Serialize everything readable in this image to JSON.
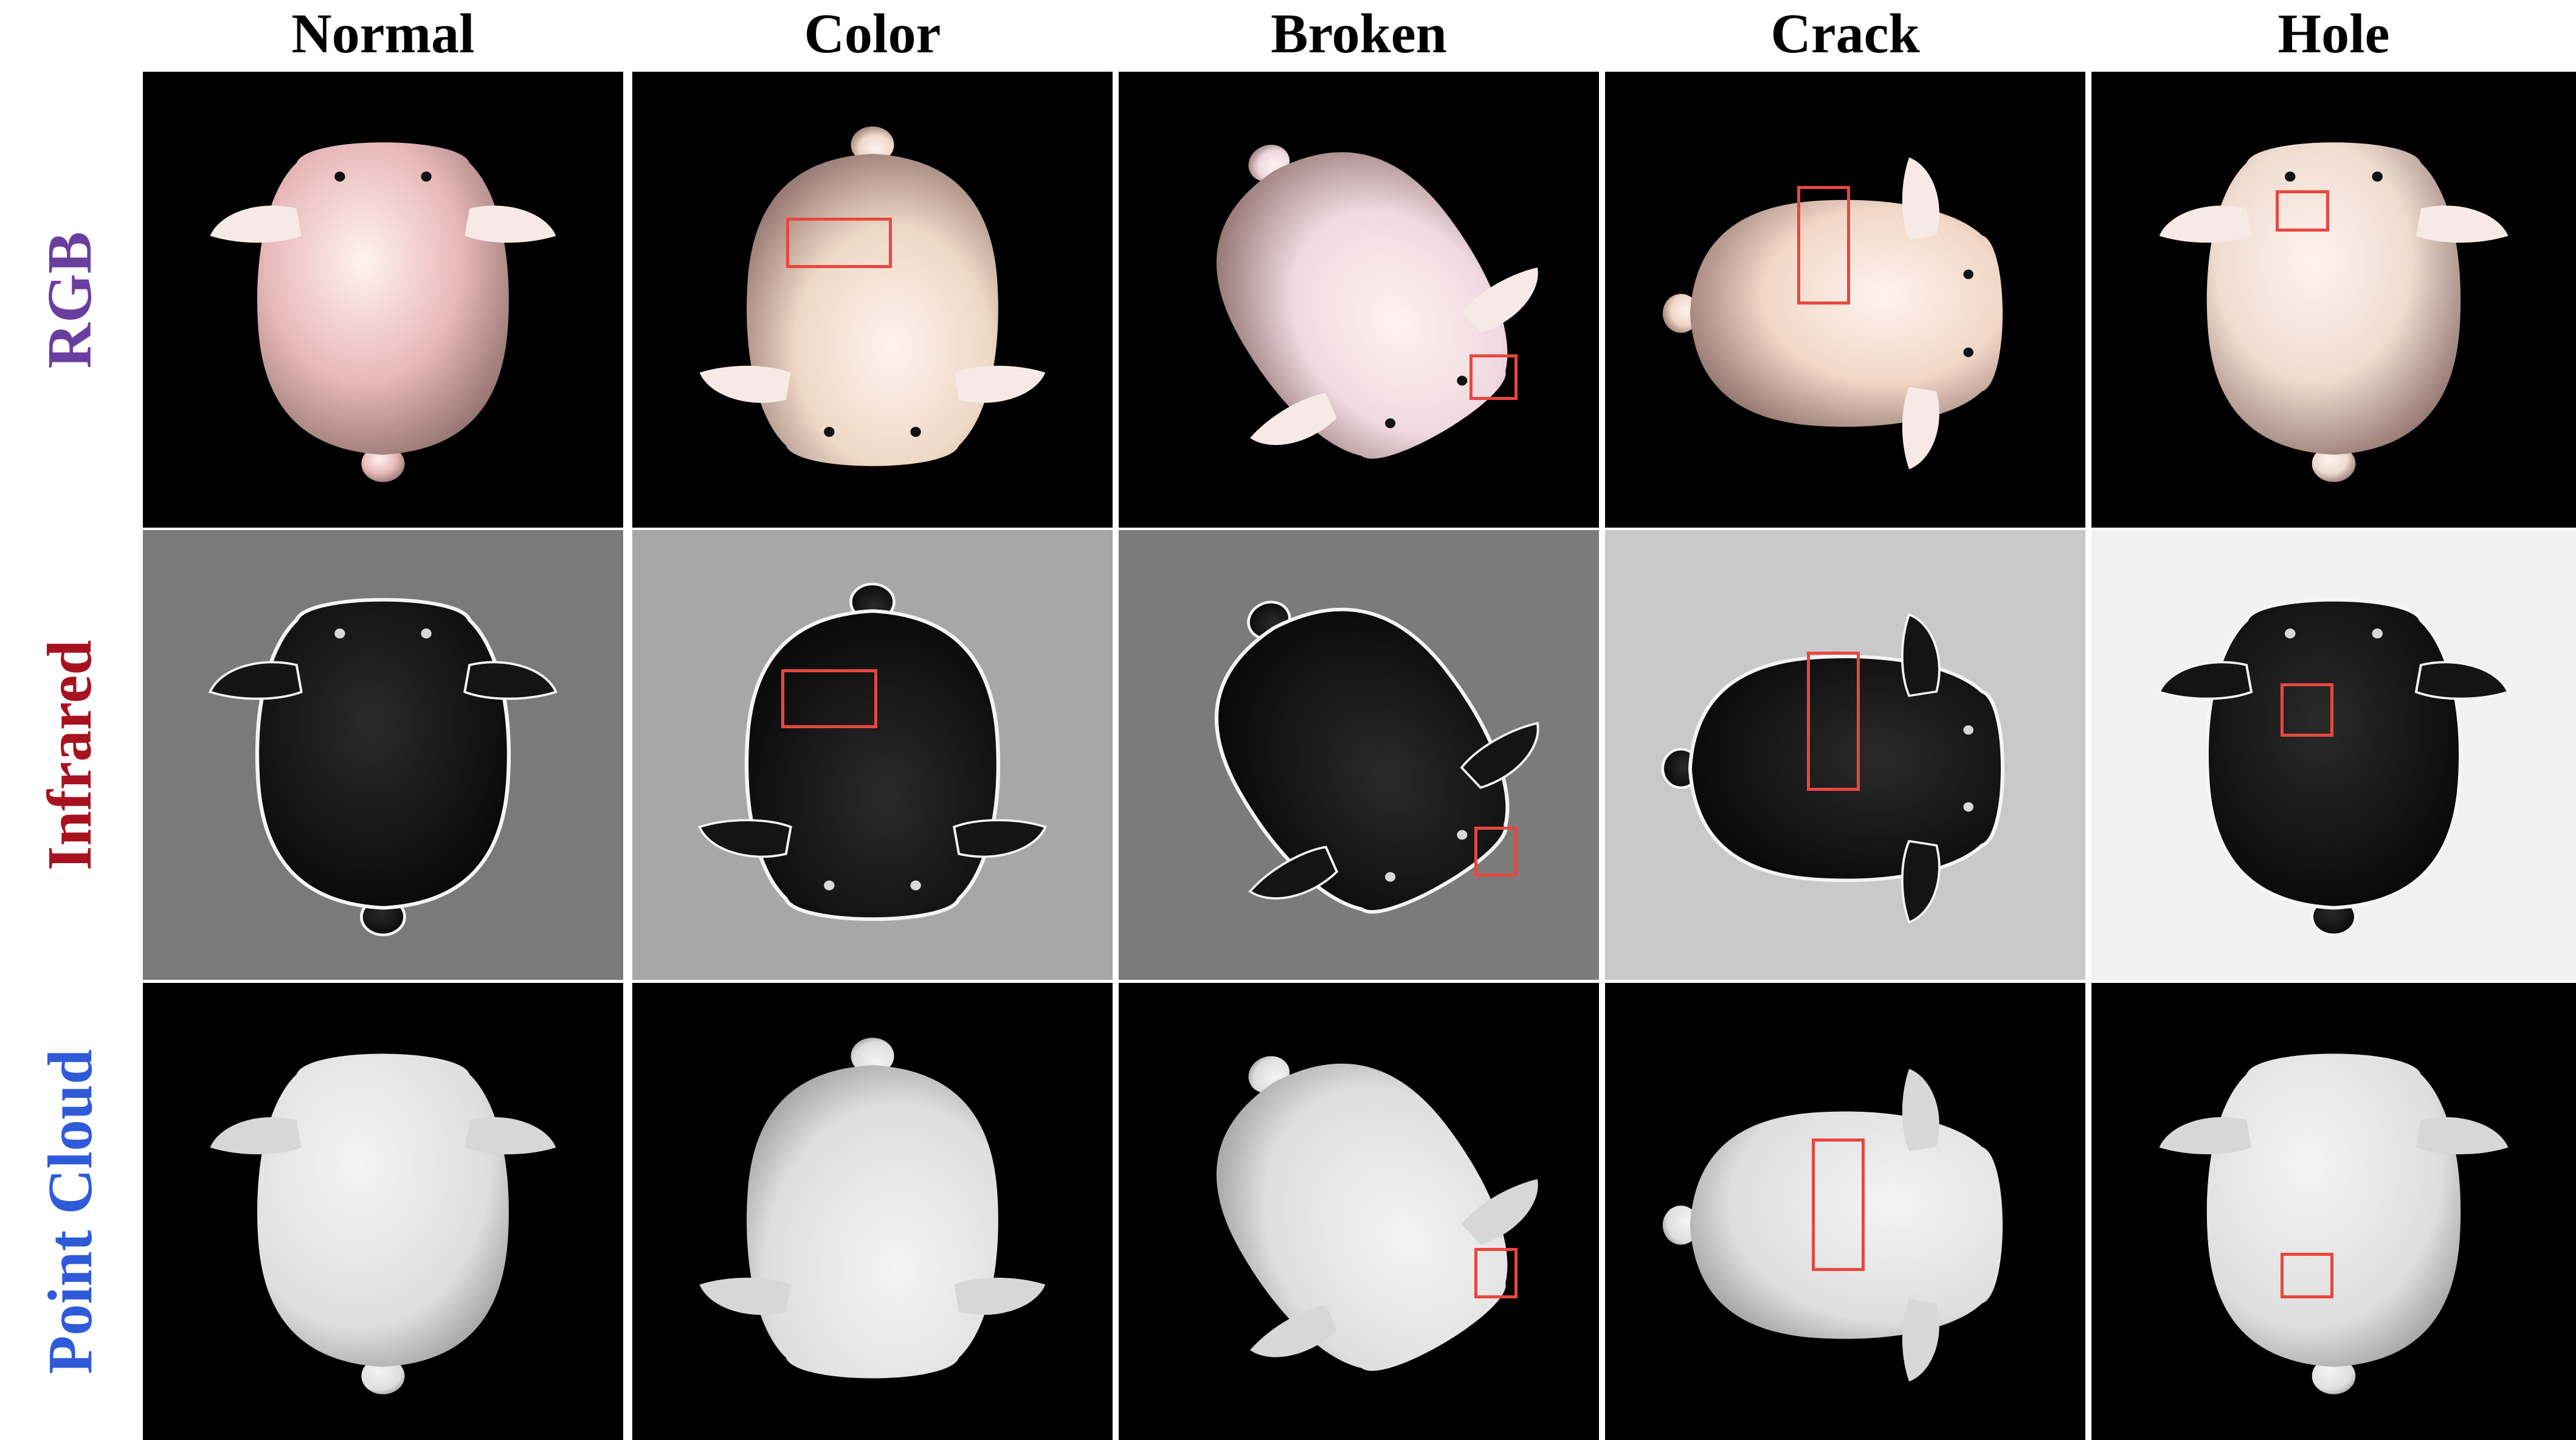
{
  "columns": [
    "Normal",
    "Color",
    "Broken",
    "Crack",
    "Hole"
  ],
  "rows": [
    {
      "label": "RGB",
      "color": "#6a3e9e",
      "modality": "rgb"
    },
    {
      "label": "Infrared",
      "color": "#a8121f",
      "modality": "infrared"
    },
    {
      "label": "Point Cloud",
      "color": "#2f5bd8",
      "modality": "pointcloud"
    }
  ],
  "colors": {
    "annotation_box": "#e8473f",
    "rgb_background": "#000000",
    "pointcloud_surface": "#e6e6e6"
  },
  "defect_annotations": {
    "Normal": false,
    "Color": true,
    "Broken": true,
    "Crack": true,
    "Hole": true
  }
}
